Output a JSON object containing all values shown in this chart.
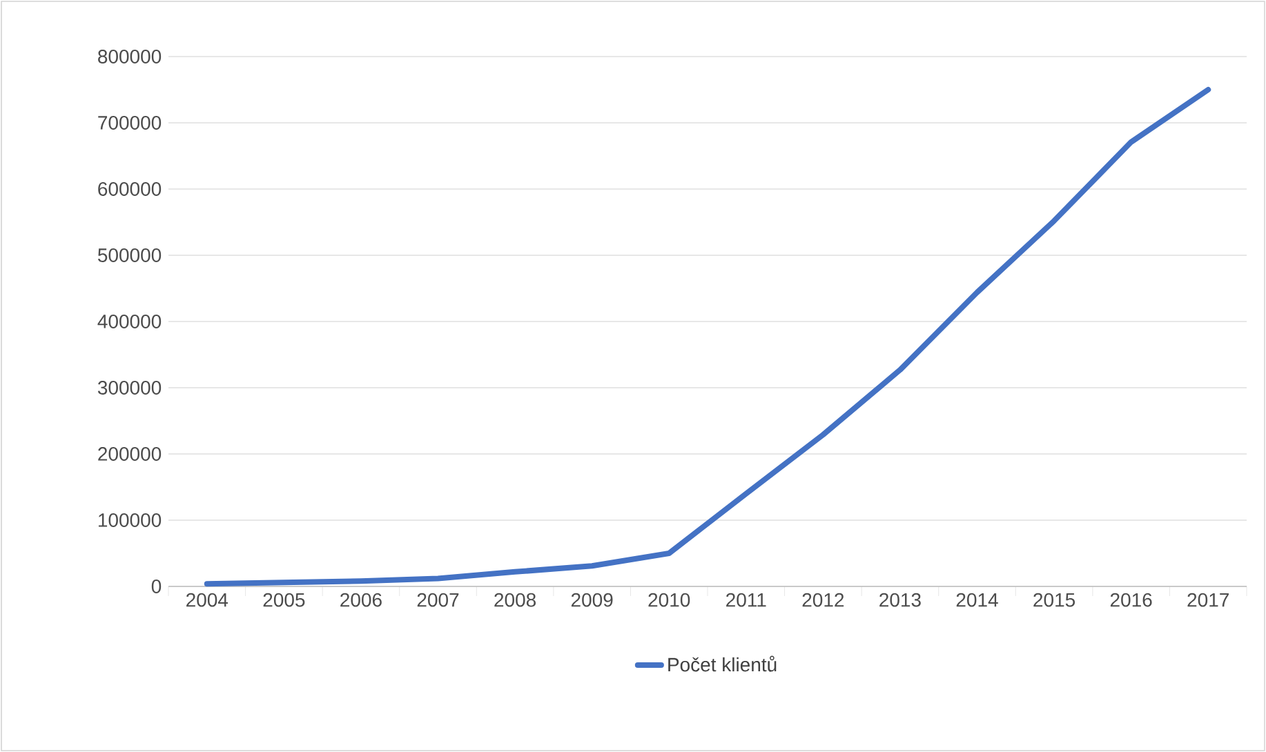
{
  "chart_data": {
    "type": "line",
    "categories": [
      "2004",
      "2005",
      "2006",
      "2007",
      "2008",
      "2009",
      "2010",
      "2011",
      "2012",
      "2013",
      "2014",
      "2015",
      "2016",
      "2017"
    ],
    "series": [
      {
        "name": "Počet klientů",
        "color": "#4472c4",
        "values": [
          4000,
          6000,
          8000,
          12000,
          22000,
          31000,
          50000,
          140000,
          229000,
          327000,
          444000,
          552000,
          671000,
          750000
        ]
      }
    ],
    "ylim": [
      0,
      800000
    ],
    "yticks": [
      0,
      100000,
      200000,
      300000,
      400000,
      500000,
      600000,
      700000,
      800000
    ],
    "grid": "y",
    "legend": "bottom",
    "marker": "none",
    "line_style": "solid"
  }
}
